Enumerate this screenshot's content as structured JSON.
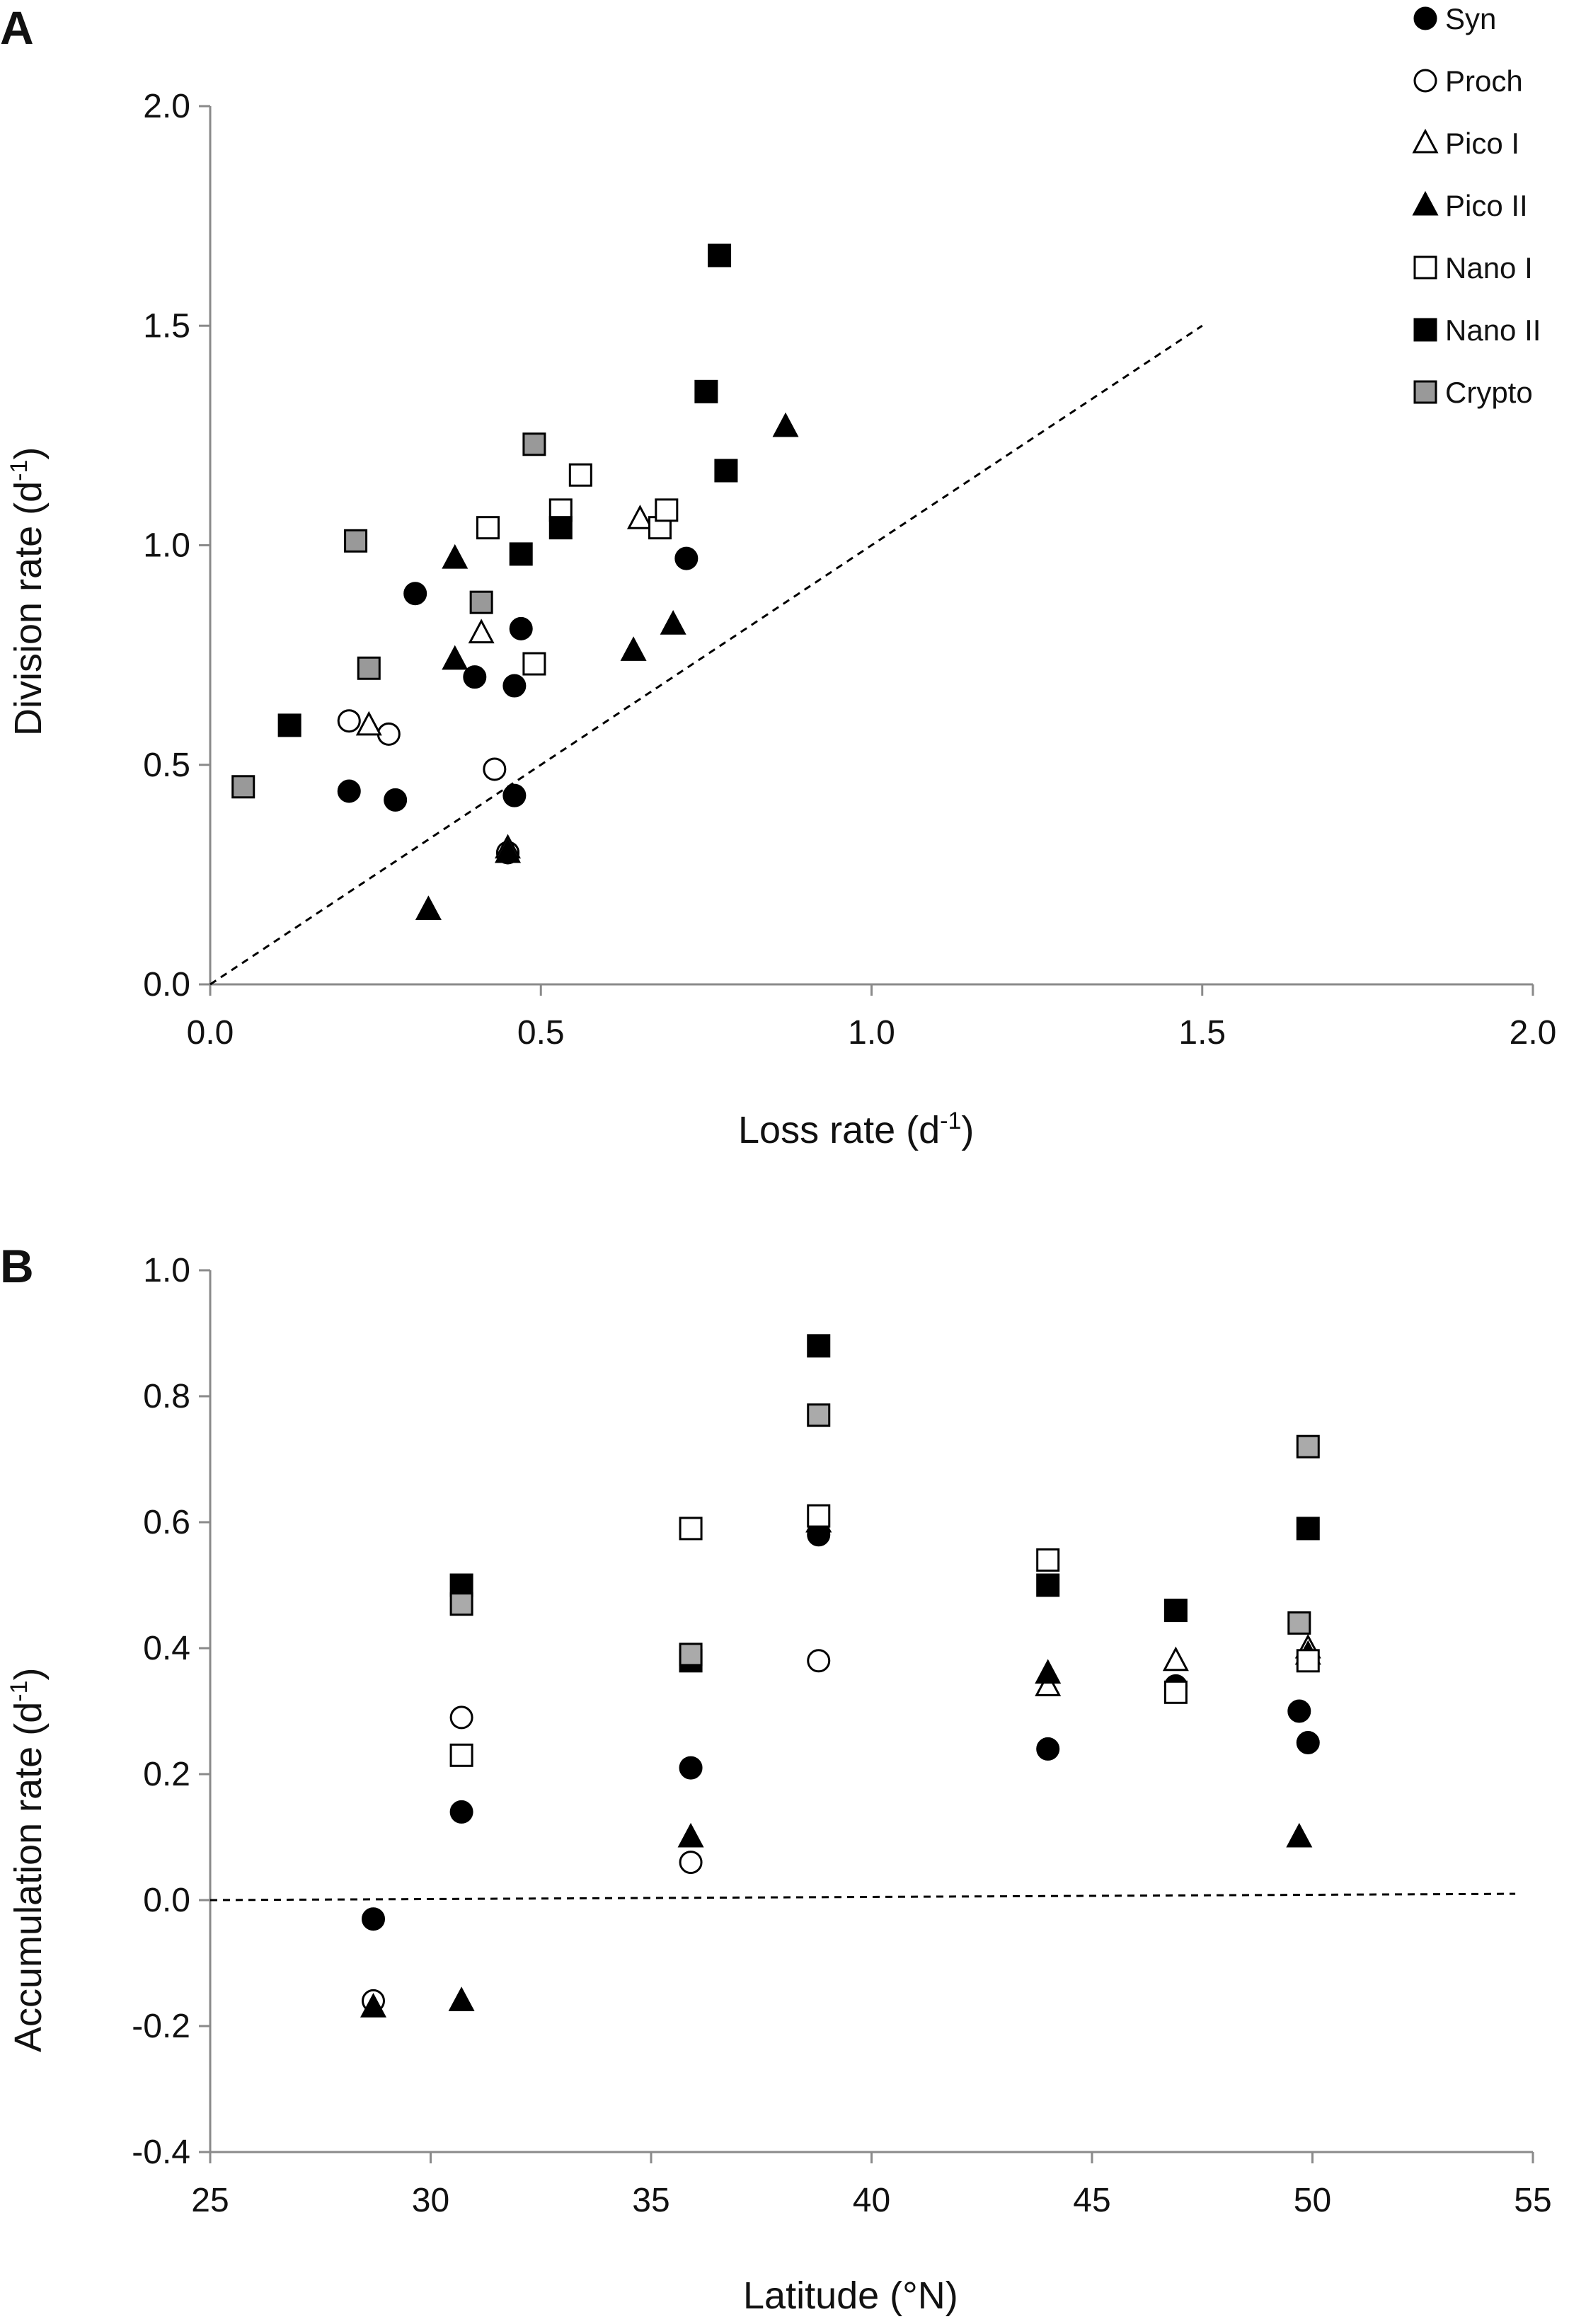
{
  "chart_data": [
    {
      "panel": "A",
      "type": "scatter",
      "xlabel": "Loss rate (d",
      "xlabel_sup": "-1",
      "xlabel_end": ")",
      "ylabel": "Division rate (d",
      "ylabel_sup": "-1",
      "ylabel_end": ")",
      "xlim": [
        0,
        2
      ],
      "ylim": [
        0,
        2
      ],
      "xticks": [
        "0.0",
        "0.5",
        "1.0",
        "1.5",
        "2.0"
      ],
      "yticks": [
        "0.0",
        "0.5",
        "1.0",
        "1.5",
        "2.0"
      ],
      "reference_line": {
        "from": [
          0,
          0
        ],
        "to": [
          1.5,
          1.5
        ],
        "style": "dashed"
      },
      "legend_position": "top-right",
      "series": [
        {
          "name": "Syn",
          "marker": "circle",
          "fill": "#000000",
          "points": [
            [
              0.21,
              0.44
            ],
            [
              0.28,
              0.42
            ],
            [
              0.31,
              0.89
            ],
            [
              0.4,
              0.7
            ],
            [
              0.46,
              0.68
            ],
            [
              0.47,
              0.81
            ],
            [
              0.46,
              0.43
            ],
            [
              0.45,
              0.3
            ],
            [
              0.72,
              0.97
            ]
          ]
        },
        {
          "name": "Proch",
          "marker": "circle",
          "fill": "#ffffff",
          "points": [
            [
              0.21,
              0.6
            ],
            [
              0.27,
              0.57
            ],
            [
              0.43,
              0.49
            ],
            [
              0.45,
              0.3
            ]
          ]
        },
        {
          "name": "Pico I",
          "marker": "triangle",
          "fill": "#ffffff",
          "points": [
            [
              0.24,
              0.59
            ],
            [
              0.41,
              0.8
            ],
            [
              0.65,
              1.06
            ],
            [
              0.45,
              0.31
            ]
          ]
        },
        {
          "name": "Pico II",
          "marker": "triangle",
          "fill": "#000000",
          "points": [
            [
              0.33,
              0.17
            ],
            [
              0.37,
              0.97
            ],
            [
              0.37,
              0.74
            ],
            [
              0.45,
              0.3
            ],
            [
              0.64,
              0.76
            ],
            [
              0.7,
              0.82
            ],
            [
              0.87,
              1.27
            ]
          ]
        },
        {
          "name": "Nano I",
          "marker": "square",
          "fill": "#ffffff",
          "points": [
            [
              0.42,
              1.04
            ],
            [
              0.49,
              0.73
            ],
            [
              0.53,
              1.08
            ],
            [
              0.56,
              1.16
            ],
            [
              0.68,
              1.04
            ],
            [
              0.69,
              1.08
            ]
          ]
        },
        {
          "name": "Nano II",
          "marker": "square",
          "fill": "#000000",
          "points": [
            [
              0.12,
              0.59
            ],
            [
              0.47,
              0.98
            ],
            [
              0.53,
              1.04
            ],
            [
              0.75,
              1.35
            ],
            [
              0.77,
              1.66
            ],
            [
              0.78,
              1.17
            ]
          ]
        },
        {
          "name": "Crypto",
          "marker": "square",
          "fill": "#999999",
          "points": [
            [
              0.05,
              0.45
            ],
            [
              0.22,
              1.01
            ],
            [
              0.24,
              0.72
            ],
            [
              0.41,
              0.87
            ],
            [
              0.49,
              1.23
            ]
          ]
        }
      ]
    },
    {
      "panel": "B",
      "type": "scatter",
      "xlabel": "Latitude (°N)",
      "ylabel": "Accumulation rate (d",
      "ylabel_sup": "-1",
      "ylabel_end": ")",
      "xlim": [
        25,
        55
      ],
      "ylim": [
        -0.4,
        1.0
      ],
      "xticks": [
        "25",
        "30",
        "35",
        "40",
        "45",
        "50",
        "55"
      ],
      "yticks": [
        "-0.4",
        "-0.2",
        "0.0",
        "0.2",
        "0.4",
        "0.6",
        "0.8",
        "1.0"
      ],
      "reference_line": {
        "from": [
          25,
          0.0
        ],
        "to": [
          54.6,
          0.01
        ],
        "style": "dashed"
      },
      "series": [
        {
          "name": "Syn",
          "marker": "circle",
          "fill": "#000000",
          "points": [
            [
              28.7,
              -0.03
            ],
            [
              30.7,
              0.14
            ],
            [
              35.9,
              0.21
            ],
            [
              38.8,
              0.58
            ],
            [
              44.0,
              0.24
            ],
            [
              46.9,
              0.34
            ],
            [
              49.7,
              0.3
            ],
            [
              49.9,
              0.25
            ]
          ]
        },
        {
          "name": "Proch",
          "marker": "circle",
          "fill": "#ffffff",
          "points": [
            [
              28.7,
              -0.16
            ],
            [
              30.7,
              0.29
            ],
            [
              35.9,
              0.06
            ],
            [
              38.8,
              0.38
            ]
          ]
        },
        {
          "name": "Pico I",
          "marker": "triangle",
          "fill": "#ffffff",
          "points": [
            [
              38.8,
              0.6
            ],
            [
              44.0,
              0.34
            ],
            [
              46.9,
              0.38
            ],
            [
              49.9,
              0.4
            ]
          ]
        },
        {
          "name": "Pico II",
          "marker": "triangle",
          "fill": "#000000",
          "points": [
            [
              28.7,
              -0.17
            ],
            [
              30.7,
              -0.16
            ],
            [
              35.9,
              0.1
            ],
            [
              38.8,
              0.6
            ],
            [
              44.0,
              0.36
            ],
            [
              49.7,
              0.1
            ],
            [
              49.9,
              0.39
            ]
          ]
        },
        {
          "name": "Nano I",
          "marker": "square",
          "fill": "#ffffff",
          "points": [
            [
              30.7,
              0.23
            ],
            [
              35.9,
              0.59
            ],
            [
              38.8,
              0.61
            ],
            [
              44.0,
              0.54
            ],
            [
              46.9,
              0.33
            ],
            [
              49.9,
              0.38
            ]
          ]
        },
        {
          "name": "Nano II",
          "marker": "square",
          "fill": "#000000",
          "points": [
            [
              30.7,
              0.5
            ],
            [
              35.9,
              0.38
            ],
            [
              38.8,
              0.88
            ],
            [
              44.0,
              0.5
            ],
            [
              46.9,
              0.46
            ],
            [
              49.9,
              0.59
            ]
          ]
        },
        {
          "name": "Crypto",
          "marker": "square",
          "fill": "#aaaaaa",
          "points": [
            [
              30.7,
              0.47
            ],
            [
              35.9,
              0.39
            ],
            [
              38.8,
              0.77
            ],
            [
              49.7,
              0.44
            ],
            [
              49.9,
              0.72
            ]
          ]
        }
      ]
    }
  ]
}
